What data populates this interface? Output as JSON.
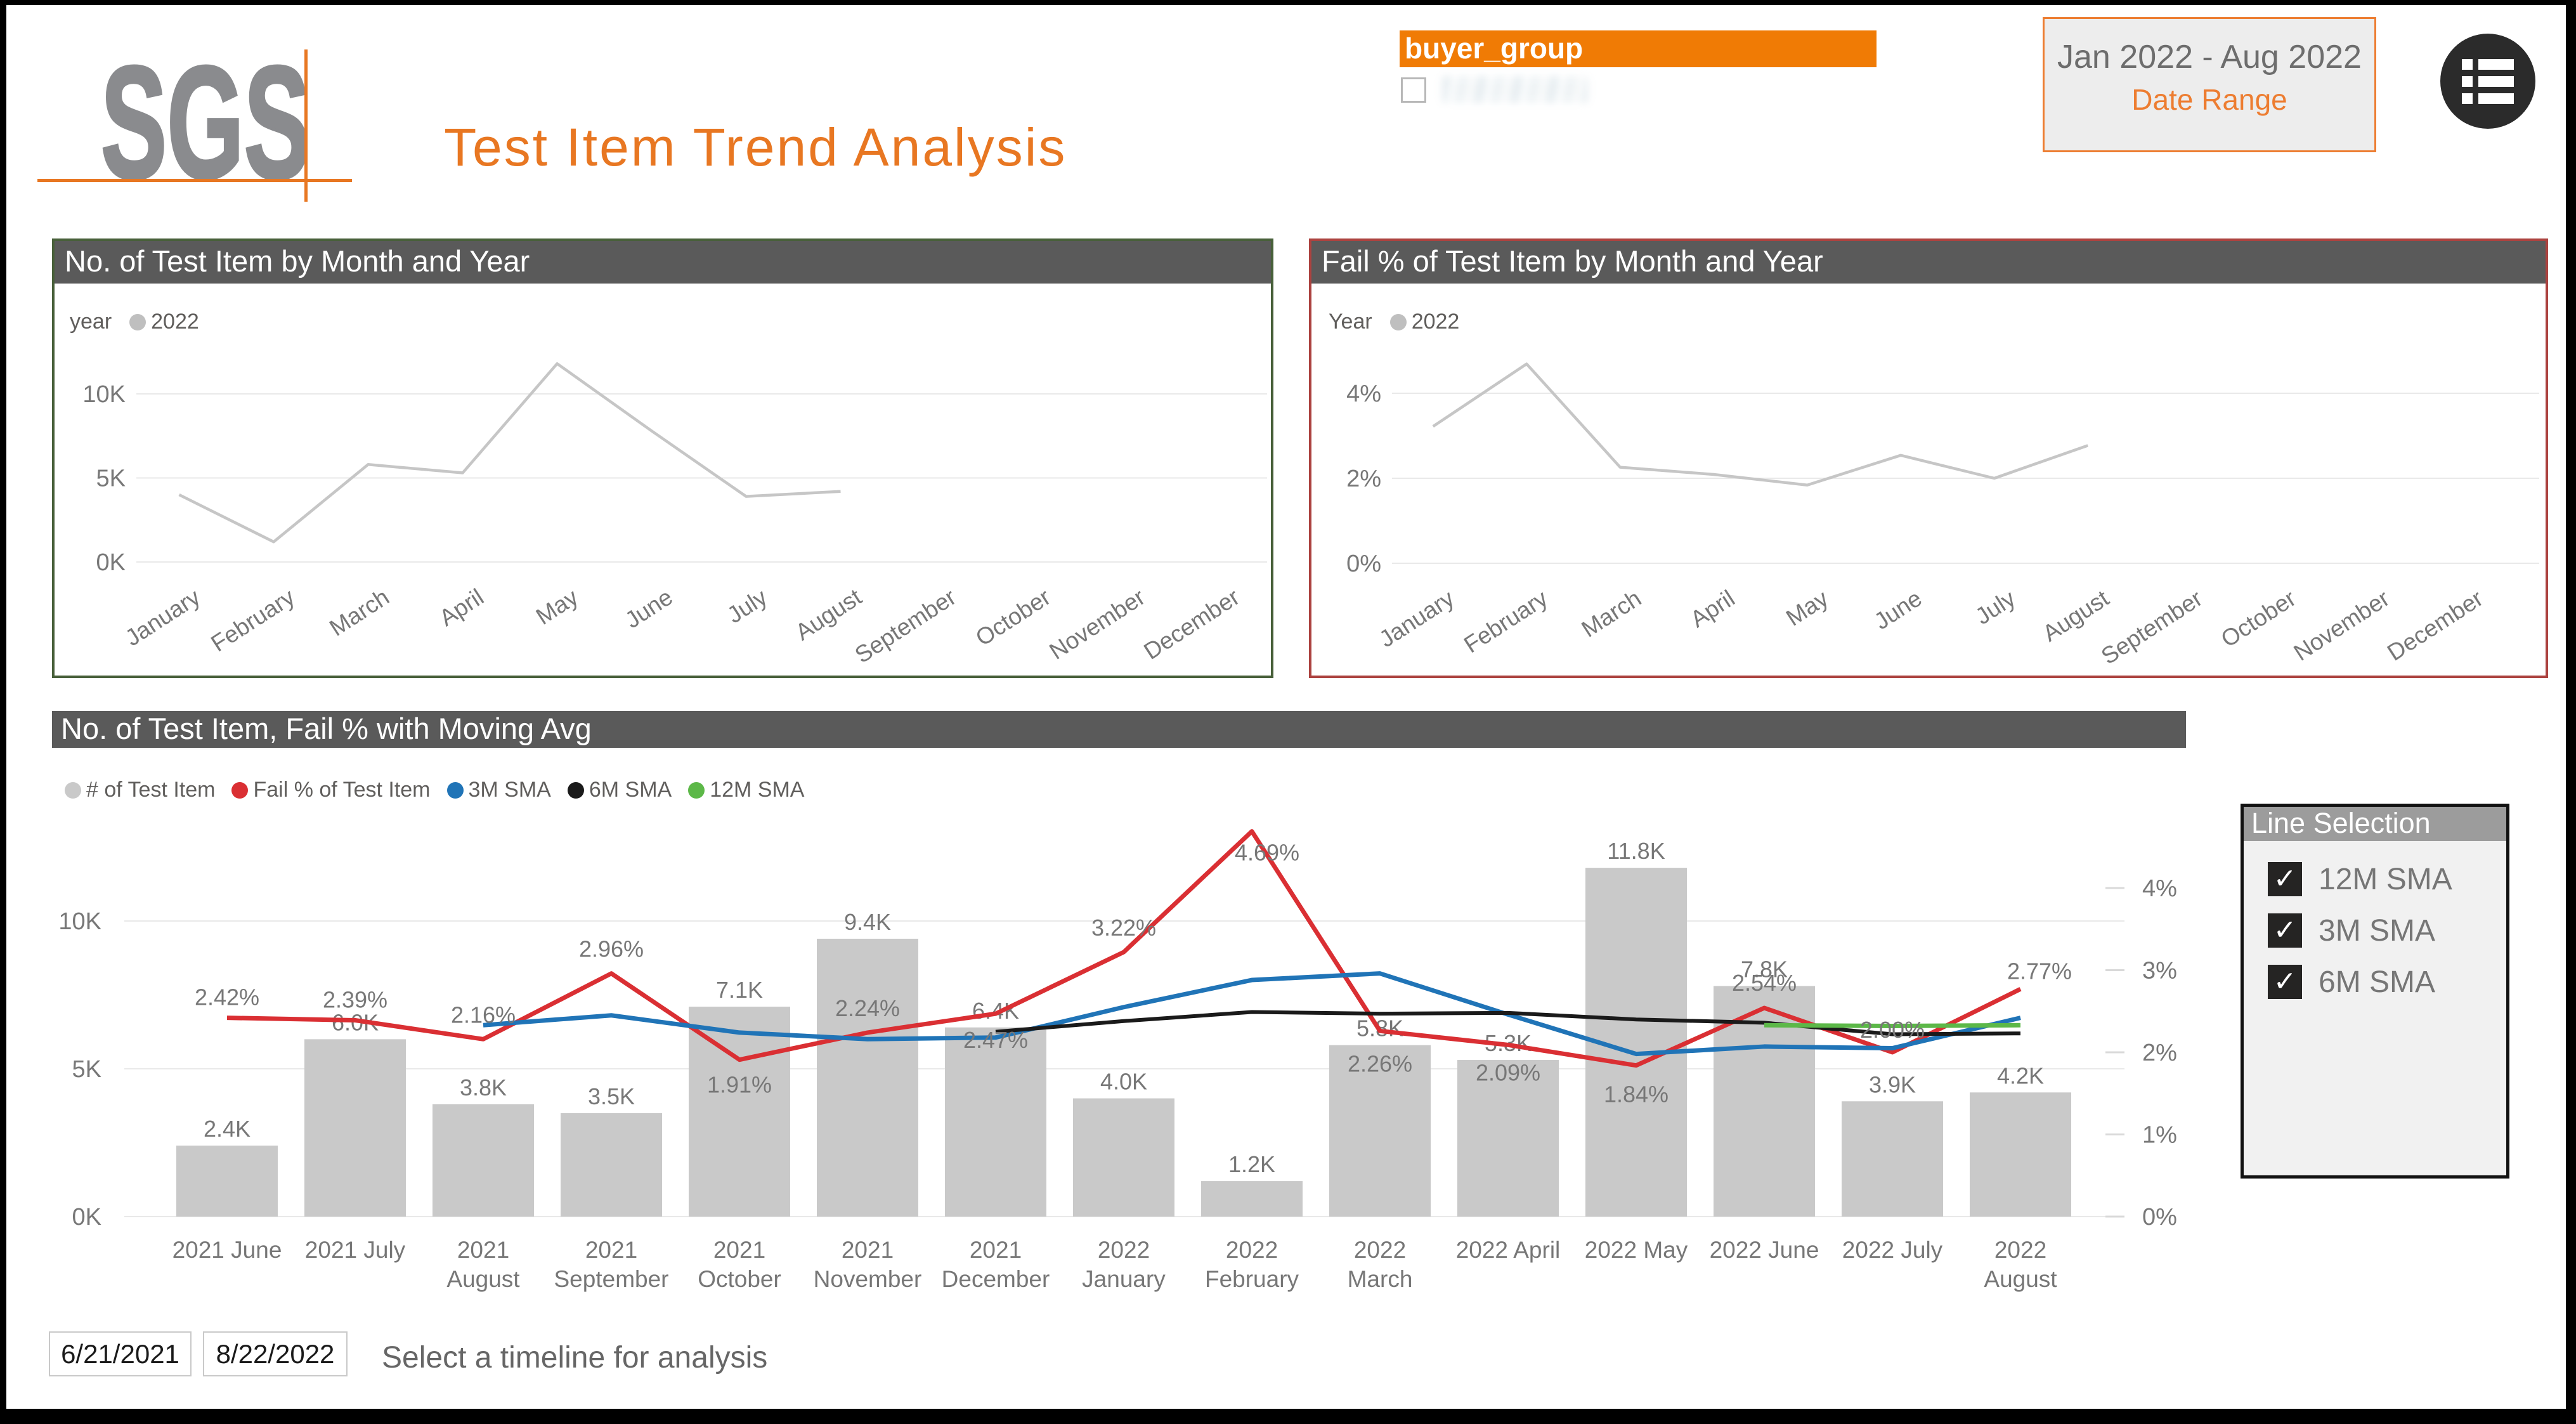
{
  "logo": {
    "text": "SGS"
  },
  "header": {
    "title": "Test Item Trend Analysis"
  },
  "buyer_group": {
    "header": "buyer_group"
  },
  "date_range": {
    "value": "Jan 2022 - Aug 2022",
    "label": "Date Range"
  },
  "line_selection": {
    "header": "Line Selection",
    "options": [
      {
        "label": "12M SMA",
        "checked": true
      },
      {
        "label": "3M SMA",
        "checked": true
      },
      {
        "label": "6M SMA",
        "checked": true
      }
    ]
  },
  "timeline": {
    "start": "6/21/2021",
    "end": "8/22/2022",
    "hint": "Select a timeline for analysis"
  },
  "chart_data": [
    {
      "id": "testItemByMonth",
      "type": "line",
      "title": "No. of Test Item by Month and Year",
      "legend_label": "year",
      "legend_series": "2022",
      "categories": [
        "January",
        "February",
        "March",
        "April",
        "May",
        "June",
        "July",
        "August",
        "September",
        "October",
        "November",
        "December"
      ],
      "values_thousands": [
        4.0,
        1.2,
        5.8,
        5.3,
        11.8,
        7.8,
        3.9,
        4.2,
        null,
        null,
        null,
        null
      ],
      "ylabel_ticks": [
        "0K",
        "5K",
        "10K"
      ],
      "ylim": [
        0,
        12.5
      ],
      "line_color": "#c6c6c6"
    },
    {
      "id": "failPctByMonth",
      "type": "line",
      "title": "Fail % of Test Item by Month and Year",
      "legend_label": "Year",
      "legend_series": "2022",
      "categories": [
        "January",
        "February",
        "March",
        "April",
        "May",
        "June",
        "July",
        "August",
        "September",
        "October",
        "November",
        "December"
      ],
      "values_percent": [
        3.22,
        4.69,
        2.26,
        2.09,
        1.84,
        2.54,
        2.0,
        2.77,
        null,
        null,
        null,
        null
      ],
      "ylabel_ticks": [
        "0%",
        "2%",
        "4%"
      ],
      "ylim": [
        0,
        5
      ],
      "line_color": "#c6c6c6"
    },
    {
      "id": "combo",
      "type": "combo-bar-line",
      "title": "No. of Test Item, Fail % with Moving Avg",
      "categories": [
        "2021 June",
        "2021 July",
        "2021 August",
        "2021 September",
        "2021 October",
        "2021 November",
        "2021 December",
        "2022 January",
        "2022 February",
        "2022 March",
        "2022 April",
        "2022 May",
        "2022 June",
        "2022 July",
        "2022 August"
      ],
      "bars": {
        "name": "# of Test Item",
        "color": "#c9c9c9",
        "values_thousands": [
          2.4,
          6.0,
          3.8,
          3.5,
          7.1,
          9.4,
          6.4,
          4.0,
          1.2,
          5.8,
          5.3,
          11.8,
          7.8,
          3.9,
          4.2
        ],
        "labels": [
          "2.4K",
          "6.0K",
          "3.8K",
          "3.5K",
          "7.1K",
          "9.4K",
          "6.4K",
          "4.0K",
          "1.2K",
          "5.8K",
          "5.3K",
          "11.8K",
          "7.8K",
          "3.9K",
          "4.2K"
        ]
      },
      "series": [
        {
          "name": "Fail % of Test Item",
          "color": "#DA2F33",
          "start_index": 0,
          "values_percent": [
            2.42,
            2.39,
            2.16,
            2.96,
            1.91,
            2.24,
            2.47,
            3.22,
            4.69,
            2.26,
            2.09,
            1.84,
            2.54,
            2.0,
            2.77
          ],
          "labels": [
            "2.42%",
            "2.39%",
            "2.16%",
            "2.96%",
            "1.91%",
            "2.24%",
            "2.47%",
            "3.22%",
            "4.69%",
            "2.26%",
            "2.09%",
            "1.84%",
            "2.54%",
            "2.00%",
            "2.77%"
          ]
        },
        {
          "name": "3M SMA",
          "color": "#2074B7",
          "start_index": 2,
          "values_percent": [
            2.33,
            2.45,
            2.24,
            2.16,
            2.18,
            2.55,
            2.88,
            2.96,
            2.46,
            1.98,
            2.07,
            2.05,
            2.42
          ]
        },
        {
          "name": "6M SMA",
          "color": "#1a1a1a",
          "start_index": 6,
          "values_percent": [
            2.25,
            2.38,
            2.49,
            2.47,
            2.48,
            2.4,
            2.36,
            2.22,
            2.23
          ]
        },
        {
          "name": "12M SMA",
          "color": "#5CB848",
          "start_index": 12,
          "values_percent": [
            2.33,
            2.32,
            2.33
          ]
        }
      ],
      "left_axis_ticks": [
        "0K",
        "5K",
        "10K"
      ],
      "right_axis_ticks": [
        "0%",
        "1%",
        "2%",
        "3%",
        "4%"
      ],
      "left_ylim_thousands": [
        0,
        12.8
      ],
      "right_ylim_percent": [
        0,
        4.6
      ]
    }
  ]
}
